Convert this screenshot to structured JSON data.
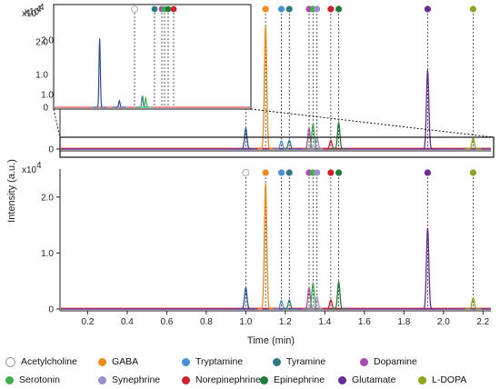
{
  "chart_data": {
    "type": "line",
    "xlabel": "Time (min)",
    "ylabel": "Intensity (a.u.)",
    "x_ticks": [
      "0.2",
      "0.4",
      "0.6",
      "0.8",
      "1.0",
      "1.2",
      "1.4",
      "1.6",
      "1.8",
      "2.0",
      "2.2"
    ],
    "y_ticks": [
      "0",
      "1.0",
      "2.0"
    ],
    "y_multiplier": "x10",
    "y_exponent": "4",
    "xlim": [
      0.06,
      2.24
    ],
    "ylim": [
      0,
      2.5
    ],
    "series": [
      {
        "name": "Acetylcholine",
        "color": "#ffffff",
        "stroke": "#9a9a9a",
        "rt": 1.0,
        "peak": 0.38
      },
      {
        "name": "GABA",
        "color": "#f08c1e",
        "rt": 1.1,
        "peak": 2.25
      },
      {
        "name": "Tryptamine",
        "color": "#4a90d9",
        "rt": 1.18,
        "peak": 0.15
      },
      {
        "name": "Tyramine",
        "color": "#2f7a80",
        "rt": 1.22,
        "peak": 0.16
      },
      {
        "name": "Dopamine",
        "color": "#a94ab0",
        "rt": 1.32,
        "peak": 0.38
      },
      {
        "name": "Serotonin",
        "color": "#3cb04a",
        "rt": 1.34,
        "peak": 0.46
      },
      {
        "name": "Synephrine",
        "color": "#9b8fc9",
        "rt": 1.36,
        "peak": 0.22
      },
      {
        "name": "Norepinephrine",
        "color": "#d0202b",
        "rt": 1.43,
        "peak": 0.16
      },
      {
        "name": "Epinephrine",
        "color": "#1f7a3c",
        "rt": 1.47,
        "peak": 0.48
      },
      {
        "name": "Glutamate",
        "color": "#6a2a9a",
        "rt": 1.92,
        "peak": 1.45
      },
      {
        "name": "L-DOPA",
        "color": "#8aa51f",
        "rt": 2.15,
        "peak": 0.2
      }
    ],
    "inset": {
      "y_ticks": [
        "0",
        "1.0",
        "2.0"
      ],
      "y_multiplier": "x10",
      "y_exponent": "4"
    }
  }
}
